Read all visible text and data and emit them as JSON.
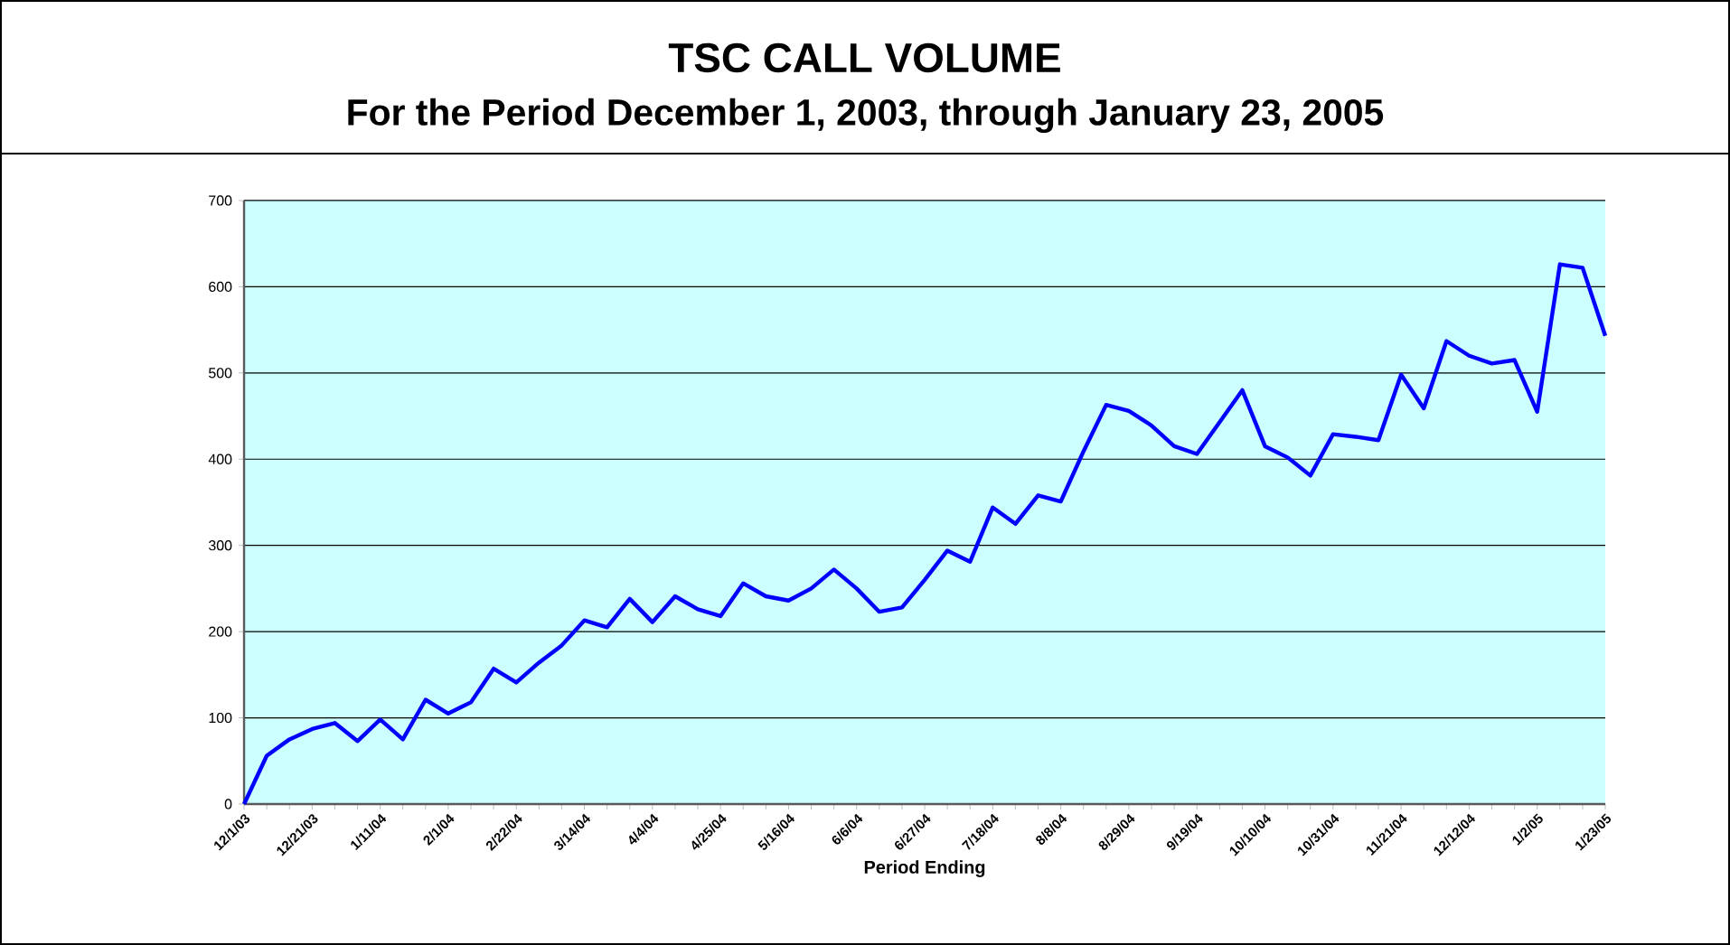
{
  "chart_data": {
    "type": "line",
    "title": "TSC CALL VOLUME",
    "subtitle": "For the Period December 1, 2003, through January 23, 2005",
    "xlabel": "Period Ending",
    "categories": [
      "12/1/03",
      null,
      null,
      "12/21/03",
      null,
      null,
      "1/11/04",
      null,
      null,
      "2/1/04",
      null,
      null,
      "2/22/04",
      null,
      null,
      "3/14/04",
      null,
      null,
      "4/4/04",
      null,
      null,
      "4/25/04",
      null,
      null,
      "5/16/04",
      null,
      null,
      "6/6/04",
      null,
      null,
      "6/27/04",
      null,
      null,
      "7/18/04",
      null,
      null,
      "8/8/04",
      null,
      null,
      "8/29/04",
      null,
      null,
      "9/19/04",
      null,
      null,
      "10/10/04",
      null,
      null,
      "10/31/04",
      null,
      null,
      "11/21/04",
      null,
      null,
      "12/12/04",
      null,
      null,
      "1/2/05",
      null,
      null,
      "1/23/05"
    ],
    "values": [
      0,
      56,
      75,
      87,
      94,
      73,
      98,
      75,
      121,
      105,
      118,
      157,
      141,
      164,
      184,
      213,
      205,
      238,
      211,
      241,
      226,
      218,
      256,
      241,
      236,
      250,
      272,
      250,
      223,
      228,
      260,
      294,
      281,
      344,
      325,
      358,
      351,
      409,
      463,
      456,
      439,
      415,
      406,
      443,
      480,
      415,
      402,
      381,
      429,
      426,
      422,
      498,
      459,
      537,
      520,
      511,
      515,
      455,
      626,
      622,
      543
    ],
    "color": "#0000ff",
    "line_style": "solid",
    "ylim": [
      0,
      700
    ],
    "yticks": [
      0,
      100,
      200,
      300,
      400,
      500,
      600,
      700
    ],
    "grid": "y"
  }
}
